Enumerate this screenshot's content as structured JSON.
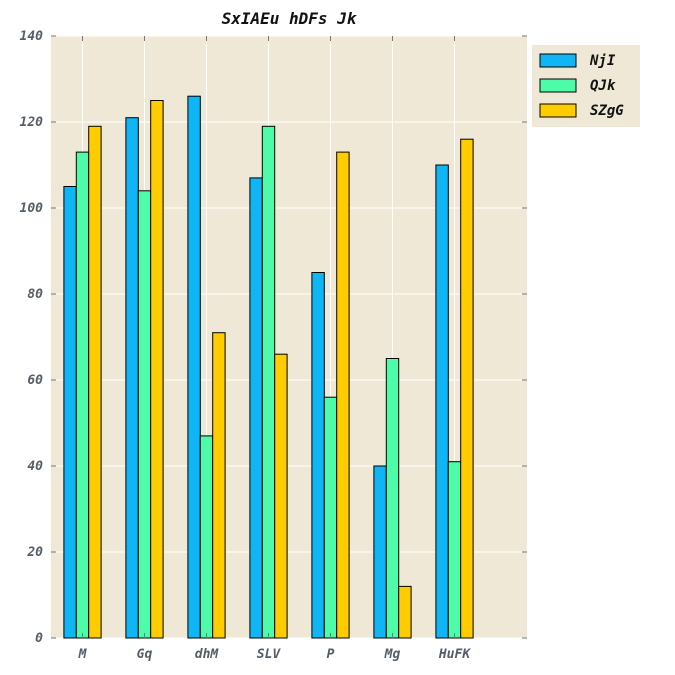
{
  "chart_data": {
    "type": "bar",
    "title": "SxIAEu hDFs Jk",
    "xlabel": "",
    "ylabel": "",
    "categories": [
      "M",
      "Gq",
      "dhM",
      "SLV",
      "P",
      "Mg",
      "HuFK"
    ],
    "ylim": [
      0,
      140
    ],
    "yticks": [
      0,
      20,
      40,
      60,
      80,
      100,
      120,
      140
    ],
    "grid": true,
    "legend_position": "top-right, outside plot",
    "plot_background": "#efe8d6",
    "series": [
      {
        "name": "NjI",
        "color": "#0fb5f5",
        "values": [
          105,
          121,
          126,
          107,
          85,
          40,
          110
        ]
      },
      {
        "name": "QJk",
        "color": "#4dfba8",
        "values": [
          113,
          104,
          47,
          119,
          56,
          65,
          41
        ]
      },
      {
        "name": "SZgG",
        "color": "#ffcc00",
        "values": [
          119,
          125,
          71,
          66,
          113,
          12,
          116
        ]
      }
    ]
  }
}
